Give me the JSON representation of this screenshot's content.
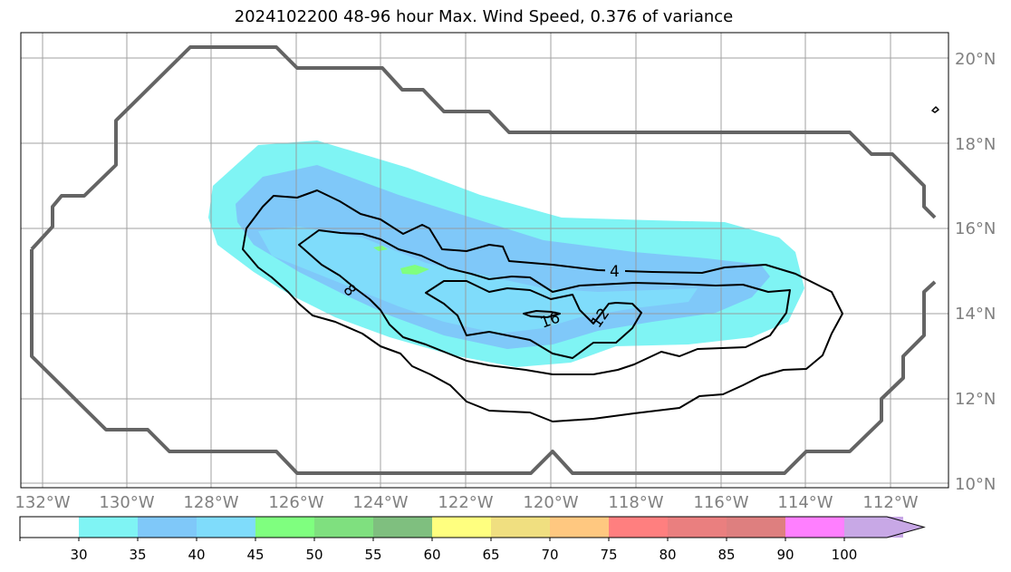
{
  "title": "2024102200 48-96 hour Max. Wind Speed, 0.376 of variance",
  "map": {
    "lat_labels": [
      "20°N",
      "18°N",
      "16°N",
      "14°N",
      "12°N",
      "10°N"
    ],
    "lon_labels": [
      "132°W",
      "130°W",
      "128°W",
      "126°W",
      "124°W",
      "122°W",
      "120°W",
      "118°W",
      "116°W",
      "114°W",
      "112°W"
    ],
    "contour_labels": [
      "4",
      "8",
      "12",
      "16"
    ],
    "lon_range": [
      -132.5,
      -110.7
    ],
    "lat_range": [
      9.9,
      20.6
    ]
  },
  "colorbar": {
    "ticks": [
      "30",
      "35",
      "40",
      "45",
      "50",
      "55",
      "60",
      "65",
      "70",
      "75",
      "80",
      "85",
      "90",
      "100"
    ],
    "colors": [
      "#ffffff",
      "#7ff4f4",
      "#7fc8f9",
      "#7fdcfb",
      "#7fff7f",
      "#7fe07f",
      "#7fbf7f",
      "#ffff7f",
      "#f0df80",
      "#ffc880",
      "#ff7f7f",
      "#ea7f7f",
      "#de7f7f",
      "#ff7fff",
      "#c8a8e6"
    ]
  }
}
